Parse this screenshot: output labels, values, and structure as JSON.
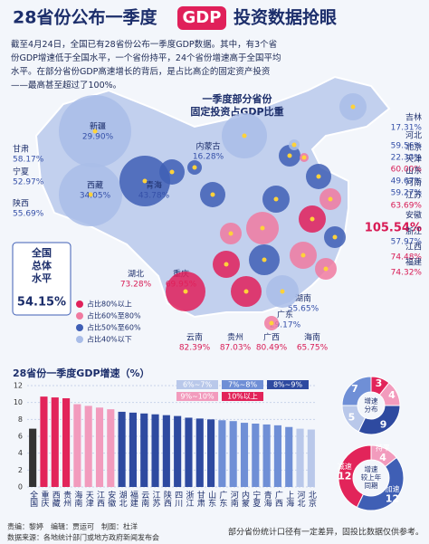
{
  "header": {
    "title_a": "28省份公布一季度",
    "title_badge": "GDP",
    "title_b": "投资数据抢眼",
    "intro": "截至4月24日，全国已有28省份公布一季度GDP数据。其中，有3个省份GDP增速低于全国水平，一个省份持平，24个省份增速高于全国平均水平。在部分省份GDP高速增长的背后，是占比高企的固定资产投资——最高甚至超过了100%。"
  },
  "map": {
    "title_lines": [
      "一季度部分省份",
      "固定投资占GDP比重"
    ],
    "provinces": [
      {
        "name": "新疆",
        "value": "29.90%",
        "level": 3
      },
      {
        "name": "甘肃",
        "value": "58.17%",
        "level": 2
      },
      {
        "name": "宁夏",
        "value": "52.97%",
        "level": 2
      },
      {
        "name": "陕西",
        "value": "55.69%",
        "level": 2
      },
      {
        "name": "西藏",
        "value": "34.05%",
        "level": 3
      },
      {
        "name": "青海",
        "value": "43.78%",
        "level": 2
      },
      {
        "name": "内蒙古",
        "value": "16.28%",
        "level": 3
      },
      {
        "name": "吉林",
        "value": "17.31%",
        "level": 3
      },
      {
        "name": "河北",
        "value": "59.56%",
        "level": 2
      },
      {
        "name": "北京",
        "value": "22.33%",
        "level": 3
      },
      {
        "name": "天津",
        "value": "60.00%",
        "level": 1
      },
      {
        "name": "山东",
        "value": "49.67%",
        "level": 2
      },
      {
        "name": "河南",
        "value": "59.27%",
        "level": 2
      },
      {
        "name": "江苏",
        "value": "63.69%",
        "level": 1
      },
      {
        "name": "安徽",
        "value": "105.54%",
        "level": 0
      },
      {
        "name": "浙江",
        "value": "57.97%",
        "level": 2
      },
      {
        "name": "江西",
        "value": "74.48%",
        "level": 1
      },
      {
        "name": "福建",
        "value": "74.32%",
        "level": 1
      },
      {
        "name": "湖北",
        "value": "73.28%",
        "level": 1
      },
      {
        "name": "重庆",
        "value": "69.95%",
        "level": 1
      },
      {
        "name": "湖南",
        "value": "55.65%",
        "level": 2
      },
      {
        "name": "广东",
        "value": "29.17%",
        "level": 3
      },
      {
        "name": "云南",
        "value": "82.39%",
        "level": 0
      },
      {
        "name": "贵州",
        "value": "87.03%",
        "level": 0
      },
      {
        "name": "广西",
        "value": "80.49%",
        "level": 0
      },
      {
        "name": "海南",
        "value": "65.75%",
        "level": 1
      }
    ],
    "national": {
      "label_lines": [
        "全国",
        "总体",
        "水平"
      ],
      "value": "54.15%"
    },
    "legend": [
      {
        "label": "占比80%以上",
        "color": "#e0205a"
      },
      {
        "label": "占比60%至80%",
        "color": "#f07aa0"
      },
      {
        "label": "占比50%至60%",
        "color": "#3f5fb5"
      },
      {
        "label": "占比40%以下",
        "color": "#a9bde8"
      }
    ]
  },
  "chart_data": {
    "type": "bar",
    "title": "28省份一季度GDP增速（%）",
    "categories": [
      "全国",
      "重庆",
      "西藏",
      "贵州",
      "海南",
      "天津",
      "江西",
      "安徽",
      "湖北",
      "福建",
      "云南",
      "江苏",
      "陕西",
      "四川",
      "浙江",
      "甘肃",
      "山东",
      "广东",
      "河南",
      "内蒙",
      "宁夏",
      "青海",
      "广西",
      "上海",
      "河北",
      "北京"
    ],
    "values": [
      6.9,
      10.7,
      10.6,
      10.5,
      9.8,
      9.6,
      9.4,
      9.2,
      8.9,
      8.8,
      8.7,
      8.6,
      8.5,
      8.4,
      8.2,
      8.1,
      8.0,
      7.9,
      7.8,
      7.6,
      7.5,
      7.4,
      7.3,
      7.1,
      6.9,
      6.8
    ],
    "bar_colors": [
      "#333333",
      "#e2245a",
      "#e2245a",
      "#e2245a",
      "#f29bbd",
      "#f29bbd",
      "#f29bbd",
      "#f29bbd",
      "#2e4aa0",
      "#2e4aa0",
      "#2e4aa0",
      "#2e4aa0",
      "#2e4aa0",
      "#2e4aa0",
      "#2e4aa0",
      "#2e4aa0",
      "#2e4aa0",
      "#6f8fd6",
      "#6f8fd6",
      "#6f8fd6",
      "#6f8fd6",
      "#6f8fd6",
      "#6f8fd6",
      "#6f8fd6",
      "#b9c8ea",
      "#b9c8ea"
    ],
    "legend": [
      {
        "name": "6%~7%",
        "color": "#b9c8ea"
      },
      {
        "name": "7%~8%",
        "color": "#6f8fd6"
      },
      {
        "name": "8%~9%",
        "color": "#2e4aa0"
      },
      {
        "name": "9%~10%",
        "color": "#f29bbd"
      },
      {
        "name": "10%以上",
        "color": "#e2245a"
      }
    ],
    "ylim": [
      0,
      12
    ],
    "yticks": [
      0,
      2,
      4,
      6,
      8,
      10,
      12
    ],
    "grid": true
  },
  "donuts": [
    {
      "center_lines": [
        "增速",
        "分布"
      ],
      "segments": [
        {
          "value": 3,
          "color": "#e2245a"
        },
        {
          "value": 4,
          "color": "#f29bbd"
        },
        {
          "value": 9,
          "color": "#2e4aa0"
        },
        {
          "value": 5,
          "color": "#b9c8ea"
        },
        {
          "value": 7,
          "color": "#6f8fd6"
        }
      ]
    },
    {
      "center_lines": [
        "增速",
        "较上年",
        "同期"
      ],
      "segments": [
        {
          "name": "持平",
          "value": 4,
          "color": "#f29bbd"
        },
        {
          "name": "加速",
          "value": 12,
          "color": "#3f5fb5"
        },
        {
          "name": "减速",
          "value": 12,
          "color": "#e2245a"
        }
      ]
    }
  ],
  "footer": {
    "credits": "责编：黎婷　编辑：贾运可　制图：杜洋",
    "source": "数据来源：各地统计部门或地方政府新闻发布会",
    "note": "部分省份统计口径有一定差异，固投比数据仅供参考。"
  }
}
